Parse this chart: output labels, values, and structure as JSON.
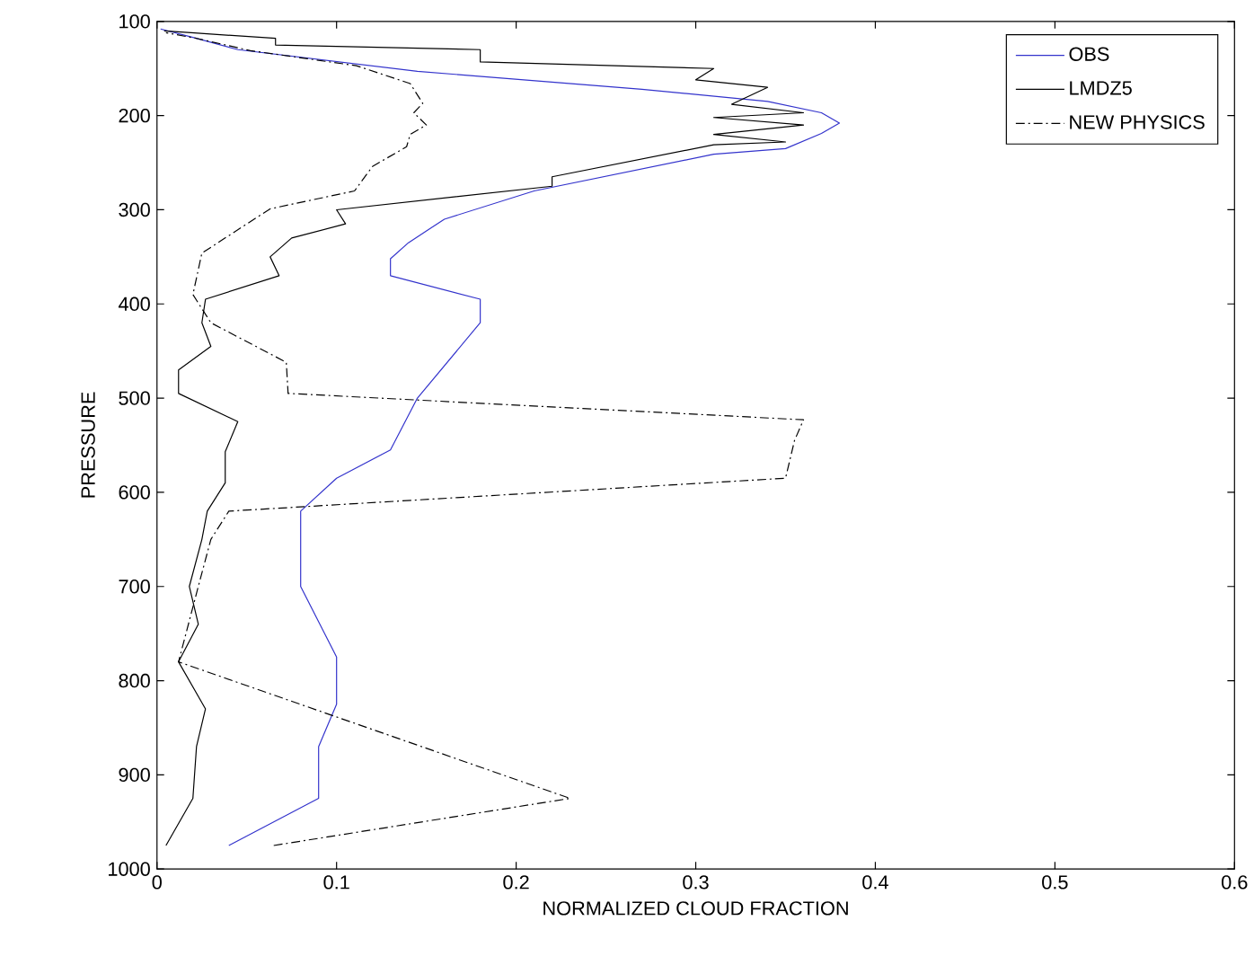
{
  "chart_data": {
    "type": "line",
    "xlabel": "NORMALIZED CLOUD FRACTION",
    "ylabel": "PRESSURE",
    "xlim": [
      0,
      0.6
    ],
    "ylim": [
      1000,
      100
    ],
    "xticks": [
      0,
      0.1,
      0.2,
      0.3,
      0.4,
      0.5,
      0.6
    ],
    "yticks": [
      100,
      200,
      300,
      400,
      500,
      600,
      700,
      800,
      900,
      1000
    ],
    "grid": false,
    "legend": "top right",
    "marker": "none",
    "series": [
      {
        "name": "OBS",
        "color": "#3333cc",
        "line_style": "solid",
        "x": [
          0.04,
          0.09,
          0.09,
          0.1,
          0.1,
          0.08,
          0.08,
          0.1,
          0.13,
          0.145,
          0.18,
          0.18,
          0.13,
          0.13,
          0.14,
          0.16,
          0.21,
          0.31,
          0.35,
          0.37,
          0.38,
          0.37,
          0.34,
          0.27,
          0.145,
          0.045,
          0.02,
          0.002
        ],
        "values": [
          975,
          925,
          870,
          825,
          775,
          700,
          620,
          585,
          555,
          500,
          420,
          395,
          370,
          352,
          335,
          310,
          280,
          241,
          235,
          219,
          208,
          197,
          185,
          172,
          153,
          130,
          117,
          108
        ]
      },
      {
        "name": "LMDZ5",
        "color": "#000000",
        "line_style": "solid",
        "x": [
          0.005,
          0.02,
          0.022,
          0.027,
          0.012,
          0.023,
          0.018,
          0.025,
          0.028,
          0.038,
          0.038,
          0.045,
          0.012,
          0.012,
          0.03,
          0.025,
          0.027,
          0.068,
          0.063,
          0.075,
          0.105,
          0.1,
          0.22,
          0.22,
          0.31,
          0.35,
          0.31,
          0.36,
          0.31,
          0.36,
          0.32,
          0.34,
          0.3,
          0.31,
          0.18,
          0.18,
          0.066,
          0.066,
          0.019,
          0.004
        ],
        "values": [
          975,
          925,
          870,
          830,
          780,
          740,
          700,
          650,
          620,
          590,
          557,
          525,
          495,
          470,
          445,
          420,
          395,
          370,
          350,
          330,
          315,
          300,
          275,
          265,
          231,
          228,
          220,
          210,
          202,
          197,
          188,
          170,
          162,
          150,
          143,
          130,
          125,
          118,
          112,
          110
        ]
      },
      {
        "name": "NEW PHYSICS",
        "color": "#000000",
        "line_style": "dashdot",
        "x": [
          0.065,
          0.23,
          0.012,
          0.023,
          0.03,
          0.04,
          0.35,
          0.355,
          0.36,
          0.073,
          0.072,
          0.03,
          0.02,
          0.025,
          0.063,
          0.11,
          0.12,
          0.139,
          0.141,
          0.15,
          0.143,
          0.148,
          0.141,
          0.111,
          0.052,
          0.022,
          0.005
        ],
        "values": [
          975,
          925,
          780,
          700,
          650,
          620,
          585,
          545,
          523,
          495,
          462,
          420,
          390,
          346,
          299,
          280,
          254,
          233,
          220,
          210,
          197,
          187,
          166,
          147,
          131,
          118,
          112
        ]
      }
    ]
  }
}
